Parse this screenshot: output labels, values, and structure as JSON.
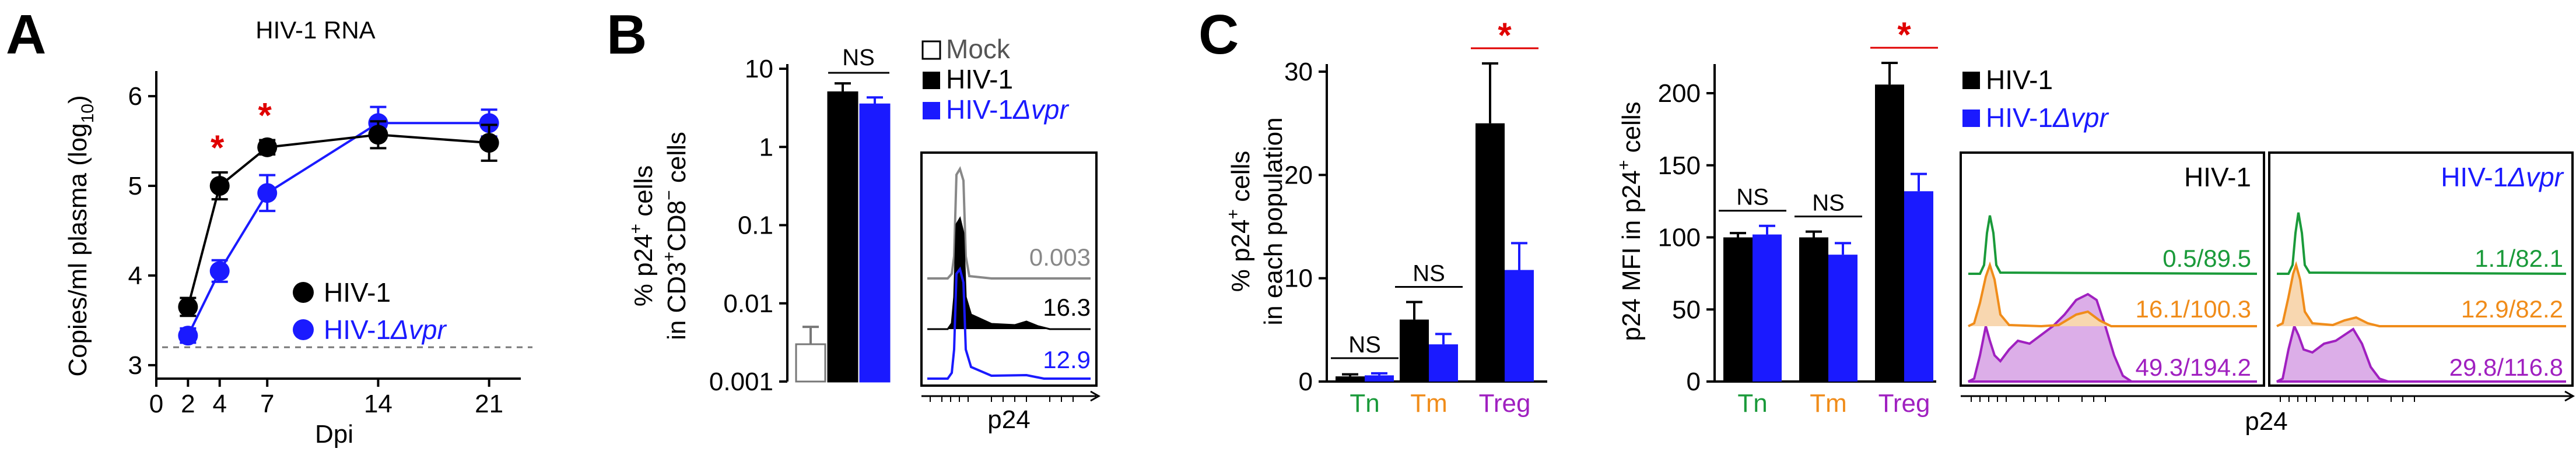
{
  "colors": {
    "hiv1": "#000000",
    "vpr": "#1a1aff",
    "mock": "#777777",
    "sig": "#e00000",
    "tn": "#1a9a3a",
    "tm": "#f08c1a",
    "treg": "#a020c0",
    "tm_fill": "#f8d7b0",
    "treg_fill": "#dcaee8"
  },
  "panelA": {
    "label": "A",
    "title": "HIV-1 RNA",
    "ylabel_parts": [
      "Copies/ml plasma (log",
      "10",
      ")"
    ],
    "xlabel": "Dpi",
    "yticks": [
      "3",
      "4",
      "5",
      "6"
    ],
    "xticks": [
      "0",
      "2",
      "4",
      "7",
      "14",
      "21"
    ],
    "legend": [
      {
        "label": "HIV-1",
        "italic": ""
      },
      {
        "label": "HIV-1",
        "italic": "Δvpr"
      }
    ]
  },
  "panelB": {
    "label": "B",
    "ylabel1": [
      "% p24",
      "+",
      " cells"
    ],
    "ylabel2": [
      "in CD3",
      "+",
      "CD8",
      "−",
      " cells"
    ],
    "yticks": [
      "0.001",
      "0.01",
      "0.1",
      "1",
      "10"
    ],
    "ns": "NS",
    "legend": [
      {
        "label": "Mock",
        "italic": ""
      },
      {
        "label": "HIV-1",
        "italic": ""
      },
      {
        "label": "HIV-1",
        "italic": "Δvpr"
      }
    ],
    "flow_values": [
      "0.003",
      "16.3",
      "12.9"
    ],
    "flow_xlabel": "p24"
  },
  "panelC": {
    "label": "C",
    "left_ylabel1": [
      "% p24",
      "+",
      " cells"
    ],
    "left_ylabel2": "in each population",
    "left_yticks": [
      "0",
      "10",
      "20",
      "30"
    ],
    "right_ylabel": [
      "p24 MFI in p24",
      "+",
      " cells"
    ],
    "right_yticks": [
      "0",
      "50",
      "100",
      "150",
      "200"
    ],
    "groups": [
      "Tn",
      "Tm",
      "Treg"
    ],
    "ns": "NS",
    "legend": [
      {
        "label": "HIV-1",
        "italic": ""
      },
      {
        "label": "HIV-1",
        "italic": "Δvpr"
      }
    ],
    "flow_titles": [
      {
        "label": "HIV-1",
        "italic": ""
      },
      {
        "label": "HIV-1",
        "italic": "Δvpr"
      }
    ],
    "flow_values_hiv": [
      "0.5/89.5",
      "16.1/100.3",
      "49.3/194.2"
    ],
    "flow_values_vpr": [
      "1.1/82.1",
      "12.9/82.2",
      "29.8/116.8"
    ],
    "flow_xlabel": "p24"
  },
  "chart_data": [
    {
      "type": "line",
      "title": "HIV-1 RNA",
      "xlabel": "Dpi",
      "ylabel": "Copies/ml plasma (log10)",
      "xlim": [
        0,
        23
      ],
      "ylim": [
        3,
        6
      ],
      "detection_limit": 3.2,
      "series": [
        {
          "name": "HIV-1",
          "x": [
            2,
            4,
            7,
            14,
            21
          ],
          "y": [
            3.65,
            5.0,
            5.43,
            5.57,
            5.48
          ],
          "err": [
            0.1,
            0.15,
            0.08,
            0.15,
            0.2
          ]
        },
        {
          "name": "HIV-1Δvpr",
          "x": [
            2,
            4,
            7,
            14,
            21
          ],
          "y": [
            3.33,
            4.05,
            4.92,
            5.7,
            5.7
          ],
          "err": [
            0.08,
            0.12,
            0.2,
            0.18,
            0.15
          ]
        }
      ],
      "significance": [
        {
          "x": 4,
          "mark": "*"
        },
        {
          "x": 7,
          "mark": "*"
        }
      ]
    },
    {
      "type": "bar",
      "ylabel": "% p24+ cells in CD3+CD8− cells",
      "yscale": "log",
      "ylim": [
        0.001,
        10
      ],
      "categories": [
        "Mock",
        "HIV-1",
        "HIV-1Δvpr"
      ],
      "values": [
        0.003,
        5.0,
        3.5
      ],
      "err_up": [
        0.005,
        6.5,
        4.3
      ],
      "significance": [
        {
          "between": [
            "HIV-1",
            "HIV-1Δvpr"
          ],
          "mark": "NS"
        }
      ]
    },
    {
      "type": "bar",
      "ylabel": "% p24+ cells in each population",
      "ylim": [
        0,
        32
      ],
      "categories": [
        "Tn",
        "Tm",
        "Treg"
      ],
      "series": [
        {
          "name": "HIV-1",
          "values": [
            0.5,
            6.0,
            25.0
          ],
          "err": [
            0.2,
            1.7,
            5.8
          ]
        },
        {
          "name": "HIV-1Δvpr",
          "values": [
            0.6,
            3.6,
            10.8
          ],
          "err": [
            0.2,
            1.0,
            2.6
          ]
        }
      ],
      "significance": [
        {
          "group": "Tn",
          "mark": "NS"
        },
        {
          "group": "Tm",
          "mark": "NS"
        },
        {
          "group": "Treg",
          "mark": "*"
        }
      ]
    },
    {
      "type": "bar",
      "ylabel": "p24 MFI in p24+ cells",
      "ylim": [
        0,
        225
      ],
      "categories": [
        "Tn",
        "Tm",
        "Treg"
      ],
      "series": [
        {
          "name": "HIV-1",
          "values": [
            100,
            100,
            206
          ],
          "err": [
            3,
            4,
            15
          ]
        },
        {
          "name": "HIV-1Δvpr",
          "values": [
            102,
            88,
            132
          ],
          "err": [
            6,
            8,
            12
          ]
        }
      ],
      "significance": [
        {
          "group": "Tn",
          "mark": "NS"
        },
        {
          "group": "Tm",
          "mark": "NS"
        },
        {
          "group": "Treg",
          "mark": "*"
        }
      ]
    }
  ]
}
